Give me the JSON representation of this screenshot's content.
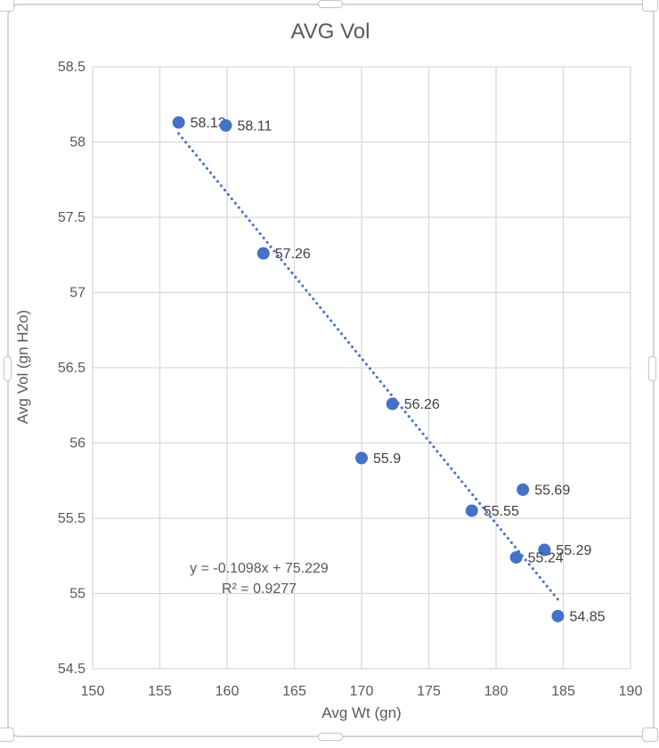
{
  "chart_data": {
    "type": "scatter",
    "title": "AVG Vol",
    "xlabel": "Avg Wt (gn)",
    "ylabel": "Avg Vol (gn H2o)",
    "xlim": [
      150,
      190
    ],
    "ylim": [
      54.5,
      58.5
    ],
    "x_ticks": [
      150,
      155,
      160,
      165,
      170,
      175,
      180,
      185,
      190
    ],
    "y_ticks": [
      58.5,
      58,
      57.5,
      57,
      56.5,
      56,
      55.5,
      55,
      54.5
    ],
    "grid": true,
    "legend": "none",
    "points": [
      {
        "x": 156.4,
        "y": 58.13,
        "label": "58.13"
      },
      {
        "x": 159.9,
        "y": 58.11,
        "label": "58.11"
      },
      {
        "x": 162.7,
        "y": 57.26,
        "label": "57.26"
      },
      {
        "x": 172.3,
        "y": 56.26,
        "label": "56.26"
      },
      {
        "x": 170.0,
        "y": 55.9,
        "label": "55.9"
      },
      {
        "x": 182.0,
        "y": 55.69,
        "label": "55.69"
      },
      {
        "x": 178.2,
        "y": 55.55,
        "label": "55.55"
      },
      {
        "x": 183.6,
        "y": 55.29,
        "label": "55.29"
      },
      {
        "x": 181.5,
        "y": 55.24,
        "label": "55.24"
      },
      {
        "x": 184.6,
        "y": 54.85,
        "label": "54.85"
      }
    ],
    "trendline": {
      "slope": -0.1098,
      "intercept": 75.229,
      "x_start": 156.4,
      "x_end": 184.6,
      "equation": "y = -0.1098x + 75.229",
      "r_squared": "R² = 0.9277"
    },
    "colors": {
      "point": "#4472C4",
      "trendline": "#4472C4",
      "gridline": "#D9D9D9",
      "axis_text": "#595959",
      "label_text": "#404040",
      "title_text": "#595959"
    }
  }
}
